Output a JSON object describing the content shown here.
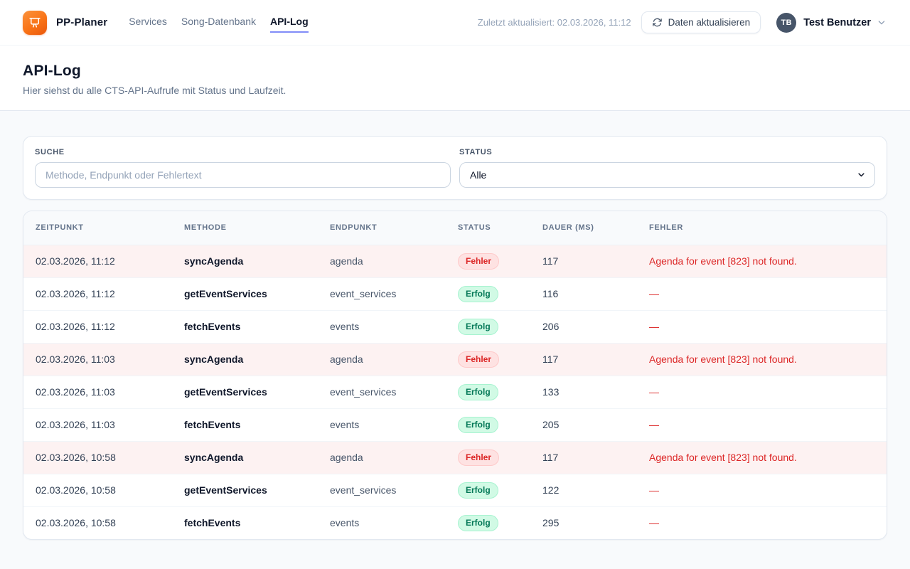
{
  "navbar": {
    "brand": "PP-Planer",
    "nav": [
      {
        "label": "Services",
        "active": false
      },
      {
        "label": "Song-Datenbank",
        "active": false
      },
      {
        "label": "API-Log",
        "active": true
      }
    ],
    "last_updated": "Zuletzt aktualisiert: 02.03.2026, 11:12",
    "refresh_label": "Daten aktualisieren",
    "user_initials": "TB",
    "user_name": "Test Benutzer"
  },
  "header": {
    "title": "API-Log",
    "subtitle": "Hier siehst du alle CTS-API-Aufrufe mit Status und Laufzeit."
  },
  "filters": {
    "search": {
      "label": "SUCHE",
      "placeholder": "Methode, Endpunkt oder Fehlertext",
      "value": ""
    },
    "status": {
      "label": "STATUS",
      "selected": "Alle"
    }
  },
  "table": {
    "columns": [
      "ZEITPUNKT",
      "METHODE",
      "ENDPUNKT",
      "STATUS",
      "DAUER (MS)",
      "FEHLER"
    ],
    "rows": [
      {
        "timestamp": "02.03.2026, 11:12",
        "method": "syncAgenda",
        "endpoint": "agenda",
        "status": "Fehler",
        "status_type": "error",
        "duration_ms": "117",
        "error": "Agenda for event [823] not found."
      },
      {
        "timestamp": "02.03.2026, 11:12",
        "method": "getEventServices",
        "endpoint": "event_services",
        "status": "Erfolg",
        "status_type": "success",
        "duration_ms": "116",
        "error": "—"
      },
      {
        "timestamp": "02.03.2026, 11:12",
        "method": "fetchEvents",
        "endpoint": "events",
        "status": "Erfolg",
        "status_type": "success",
        "duration_ms": "206",
        "error": "—"
      },
      {
        "timestamp": "02.03.2026, 11:03",
        "method": "syncAgenda",
        "endpoint": "agenda",
        "status": "Fehler",
        "status_type": "error",
        "duration_ms": "117",
        "error": "Agenda for event [823] not found."
      },
      {
        "timestamp": "02.03.2026, 11:03",
        "method": "getEventServices",
        "endpoint": "event_services",
        "status": "Erfolg",
        "status_type": "success",
        "duration_ms": "133",
        "error": "—"
      },
      {
        "timestamp": "02.03.2026, 11:03",
        "method": "fetchEvents",
        "endpoint": "events",
        "status": "Erfolg",
        "status_type": "success",
        "duration_ms": "205",
        "error": "—"
      },
      {
        "timestamp": "02.03.2026, 10:58",
        "method": "syncAgenda",
        "endpoint": "agenda",
        "status": "Fehler",
        "status_type": "error",
        "duration_ms": "117",
        "error": "Agenda for event [823] not found."
      },
      {
        "timestamp": "02.03.2026, 10:58",
        "method": "getEventServices",
        "endpoint": "event_services",
        "status": "Erfolg",
        "status_type": "success",
        "duration_ms": "122",
        "error": "—"
      },
      {
        "timestamp": "02.03.2026, 10:58",
        "method": "fetchEvents",
        "endpoint": "events",
        "status": "Erfolg",
        "status_type": "success",
        "duration_ms": "295",
        "error": "—"
      }
    ]
  },
  "colors": {
    "accent_orange": "#f97316",
    "accent_indigo": "#818cf8",
    "error_text": "#dc2626",
    "error_row_bg": "#fdf2f2",
    "error_badge_bg": "#fee2e2",
    "success_badge_bg": "#d1fae5",
    "success_badge_text": "#047857"
  }
}
